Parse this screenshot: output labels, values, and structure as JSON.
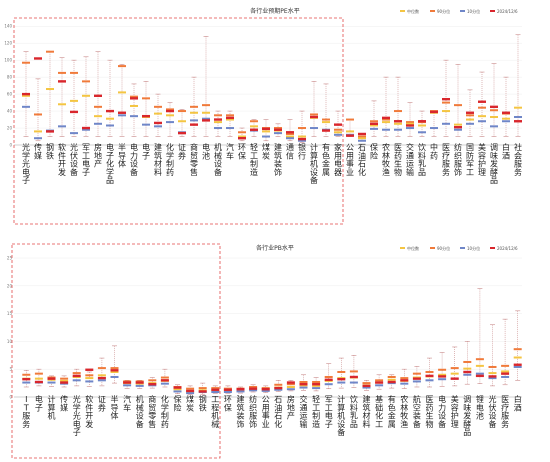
{
  "chart_data": [
    {
      "type": "box",
      "title": "各行业预期PE水平",
      "legend": [
        "中位数",
        "90分位",
        "10分位",
        "2024/12/6"
      ],
      "colors": {
        "median": "#f4c542",
        "p90": "#f07a3a",
        "p10": "#6f86c8",
        "current": "#d9262c",
        "range": "#c98a8a"
      },
      "y_ticks": [
        "0",
        "20",
        "40",
        "60",
        "80",
        "100",
        "120",
        "140"
      ],
      "ylim": [
        0,
        145
      ],
      "categories": [
        "光学光电子",
        "传媒",
        "钢铁",
        "软件开发",
        "光伏设备",
        "军工电子",
        "房地产",
        "电子化学品",
        "半导体",
        "电力设备",
        "电子",
        "建筑材料",
        "化学制药",
        "证券",
        "商贸零售",
        "电池",
        "机械设备",
        "汽车",
        "环保",
        "轻工制造",
        "煤炭",
        "建筑装饰",
        "通信",
        "银行",
        "计算机设备",
        "有色金属",
        "家用电器",
        "公用事业",
        "石油石化",
        "保险",
        "农林牧渔",
        "医药生物",
        "交通运输",
        "饮料乳品",
        "中药",
        "医疗服务",
        "纺织服饰",
        "国防军工",
        "美容护理",
        "调味发酵品",
        "白酒",
        "社会服务"
      ],
      "series": [
        {
          "name": "上沿",
          "values": [
            110,
            78,
            110,
            103,
            100,
            104,
            110,
            100,
            95,
            72,
            75,
            60,
            50,
            42,
            80,
            128,
            40,
            40,
            20,
            30,
            30,
            25,
            30,
            40,
            75,
            72,
            40,
            30,
            10,
            52,
            80,
            80,
            50,
            40,
            40,
            100,
            95,
            65,
            86,
            96,
            80,
            130
          ]
        },
        {
          "name": "90分位",
          "values": [
            97,
            36,
            110,
            85,
            85,
            75,
            45,
            40,
            93,
            57,
            55,
            45,
            42,
            40,
            45,
            47,
            35,
            35,
            15,
            28,
            20,
            20,
            13,
            20,
            36,
            30,
            18,
            30,
            10,
            28,
            30,
            40,
            27,
            27,
            40,
            50,
            47,
            35,
            44,
            41,
            37,
            33
          ]
        },
        {
          "name": "中位数",
          "values": [
            58,
            16,
            66,
            48,
            52,
            58,
            34,
            31,
            62,
            46,
            33,
            37,
            35,
            28,
            38,
            38,
            27,
            30,
            10,
            22,
            16,
            17,
            10,
            10,
            32,
            27,
            15,
            16,
            8,
            23,
            27,
            25,
            25,
            23,
            38,
            40,
            24,
            30,
            34,
            33,
            31,
            44
          ]
        },
        {
          "name": "10分位",
          "values": [
            45,
            8,
            17,
            22,
            14,
            18,
            25,
            23,
            35,
            34,
            24,
            22,
            27,
            15,
            29,
            31,
            20,
            20,
            8,
            17,
            10,
            14,
            8,
            5,
            20,
            18,
            12,
            12,
            5,
            19,
            18,
            18,
            20,
            15,
            20,
            25,
            18,
            25,
            28,
            22,
            28,
            33
          ]
        },
        {
          "name": "下沿",
          "values": [
            10,
            5,
            10,
            10,
            10,
            10,
            10,
            10,
            10,
            10,
            10,
            10,
            10,
            10,
            10,
            10,
            10,
            10,
            5,
            10,
            5,
            10,
            5,
            3,
            10,
            10,
            10,
            10,
            5,
            10,
            10,
            10,
            10,
            10,
            10,
            10,
            10,
            10,
            10,
            10,
            10,
            10
          ]
        },
        {
          "name": "2024/12/6",
          "values": [
            60,
            102,
            16,
            75,
            39,
            20,
            58,
            40,
            38,
            55,
            34,
            26,
            40,
            14,
            24,
            29,
            30,
            32,
            8,
            18,
            19,
            18,
            15,
            7,
            33,
            17,
            24,
            11,
            13,
            25,
            32,
            28,
            23,
            28,
            39,
            54,
            21,
            38,
            51,
            45,
            38,
            28
          ]
        }
      ]
    },
    {
      "type": "box",
      "title": "各行业PB水平",
      "legend": [
        "中位数",
        "90分位",
        "10分位",
        "2024/12/6"
      ],
      "y_ticks": [
        "0",
        "5",
        "10",
        "15",
        "20",
        "25"
      ],
      "ylim": [
        0,
        25
      ],
      "categories": [
        "IT服务",
        "电子",
        "计算机",
        "传媒",
        "光学光电子",
        "软件开发",
        "证券",
        "半导体",
        "汽车",
        "机械设备",
        "商贸零售",
        "化学制药",
        "保险",
        "煤炭",
        "钢铁",
        "工程机械",
        "环保",
        "建筑装饰",
        "纺织服饰",
        "公用事业",
        "石油石化",
        "房地产",
        "交通运输",
        "轻工制造",
        "军工电子",
        "计算机设备",
        "饮料乳品",
        "建筑材料",
        "基础化工",
        "有色金属",
        "农林牧渔",
        "航空装备",
        "医药生物",
        "电力设备",
        "美容护理",
        "调味发酵品",
        "锂电池",
        "光伏设备",
        "医疗服务",
        "白酒"
      ],
      "series": [
        {
          "name": "上沿",
          "values": [
            4.8,
            5.0,
            3.8,
            3.8,
            5.0,
            4.5,
            7.0,
            9.2,
            3.0,
            3.0,
            3.5,
            5.0,
            2.2,
            2.0,
            2.5,
            2.0,
            2.0,
            1.8,
            2.2,
            2.0,
            3.0,
            3.0,
            4.0,
            3.5,
            6.0,
            7.0,
            7.5,
            3.0,
            4.0,
            4.0,
            5.0,
            5.5,
            7.0,
            8.0,
            9.0,
            10.0,
            19.5,
            13.0,
            14.0,
            15.5
          ]
        },
        {
          "name": "90分位",
          "values": [
            4.0,
            4.2,
            3.5,
            3.3,
            4.3,
            3.9,
            5.2,
            5.2,
            2.8,
            2.8,
            3.0,
            3.5,
            1.8,
            1.5,
            1.6,
            1.6,
            1.5,
            1.5,
            1.8,
            1.6,
            2.2,
            2.3,
            2.7,
            2.7,
            3.6,
            4.5,
            4.6,
            2.5,
            3.0,
            3.6,
            3.4,
            4.2,
            4.5,
            4.9,
            5.2,
            6.3,
            6.8,
            5.4,
            5.6,
            8.6
          ]
        },
        {
          "name": "中位数",
          "values": [
            3.3,
            3.3,
            3.1,
            2.9,
            3.6,
            3.4,
            3.9,
            4.5,
            2.5,
            2.4,
            2.5,
            2.9,
            1.4,
            1.0,
            1.2,
            1.2,
            1.2,
            1.3,
            1.5,
            1.3,
            1.7,
            1.8,
            2.1,
            2.0,
            2.9,
            3.4,
            3.5,
            2.1,
            2.6,
            3.1,
            2.9,
            3.5,
            3.7,
            4.0,
            4.2,
            5.1,
            5.6,
            4.3,
            4.6,
            7.1
          ]
        },
        {
          "name": "10分位",
          "values": [
            2.6,
            2.6,
            2.6,
            2.4,
            3.0,
            2.8,
            3.0,
            3.6,
            2.1,
            2.0,
            2.1,
            2.4,
            1.0,
            0.7,
            0.9,
            0.9,
            0.9,
            1.0,
            1.2,
            1.1,
            1.3,
            1.4,
            1.7,
            1.6,
            2.3,
            2.6,
            2.6,
            1.7,
            2.1,
            2.5,
            2.4,
            2.8,
            3.0,
            3.2,
            3.3,
            4.0,
            4.2,
            3.4,
            3.6,
            5.4
          ]
        },
        {
          "name": "下沿",
          "values": [
            1.8,
            2.0,
            1.9,
            1.8,
            2.0,
            1.9,
            2.0,
            2.5,
            1.5,
            1.5,
            1.6,
            1.8,
            0.6,
            0.4,
            0.5,
            0.6,
            0.6,
            0.7,
            0.9,
            0.8,
            1.0,
            1.1,
            1.2,
            1.1,
            1.5,
            1.6,
            1.7,
            1.2,
            1.4,
            1.6,
            1.5,
            1.8,
            1.8,
            1.9,
            2.0,
            2.3,
            2.4,
            2.0,
            2.2,
            3.0
          ]
        },
        {
          "name": "2024/12/6",
          "values": [
            3.2,
            2.7,
            3.3,
            2.6,
            3.8,
            4.9,
            3.4,
            4.8,
            2.6,
            2.6,
            2.3,
            3.0,
            1.7,
            1.1,
            1.0,
            1.3,
            1.3,
            1.4,
            1.5,
            1.4,
            1.6,
            2.6,
            2.3,
            2.3,
            3.1,
            3.2,
            3.6,
            2.0,
            2.6,
            2.7,
            3.0,
            3.3,
            3.8,
            3.7,
            3.3,
            4.5,
            3.8,
            3.7,
            4.2,
            5.8
          ]
        }
      ]
    }
  ]
}
